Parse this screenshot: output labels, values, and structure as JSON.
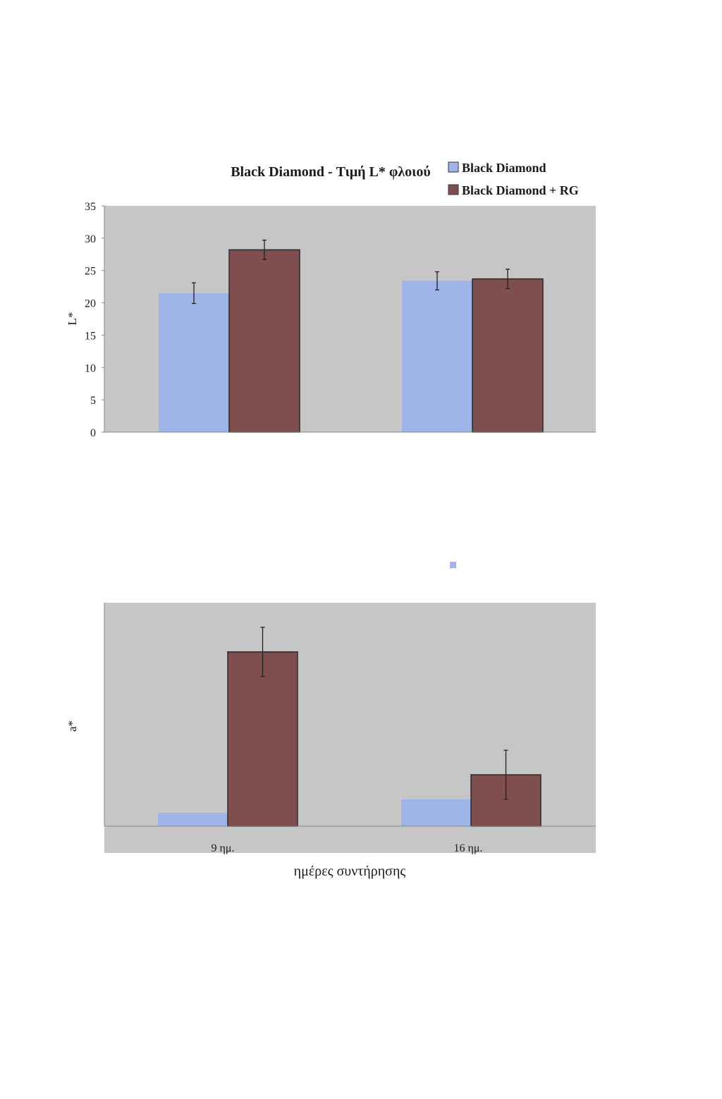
{
  "colors": {
    "series_1": "#9eb3e8",
    "series_2": "#7f4f4f",
    "plot_bg": "#c6c6c6",
    "axis": "#888888",
    "error_bar": "#222222"
  },
  "chart_data": [
    {
      "type": "bar",
      "title": "Black Diamond - Τιμή L* φλοιού",
      "ylabel": "L*",
      "xlabel": "",
      "ylim": [
        0,
        35
      ],
      "yticks": [
        0,
        5,
        10,
        15,
        20,
        25,
        30,
        35
      ],
      "grid": false,
      "legend_position": "top-right",
      "categories": [
        "9 ημ.",
        "16 ημ."
      ],
      "series": [
        {
          "name": "Black Diamond",
          "values": [
            21.5,
            23.4
          ],
          "errors": [
            1.6,
            1.4
          ]
        },
        {
          "name": "Black Diamond + RG",
          "values": [
            28.2,
            23.7
          ],
          "errors": [
            1.5,
            1.5
          ]
        }
      ]
    },
    {
      "type": "bar",
      "title": "",
      "ylabel": "a*",
      "xlabel": "ημέρες συντήρησης",
      "ylim": [
        0,
        10
      ],
      "yticks": [],
      "grid": false,
      "tick_labels": [
        "9 ημ.",
        "16 ημ."
      ],
      "categories": [
        "9 ημ.",
        "16 ημ."
      ],
      "series": [
        {
          "name": "",
          "values": [
            0.6,
            1.2
          ],
          "errors": [
            0,
            0
          ]
        },
        {
          "name": "",
          "values": [
            7.8,
            2.3
          ],
          "errors": [
            1.1,
            1.1
          ]
        }
      ]
    }
  ]
}
